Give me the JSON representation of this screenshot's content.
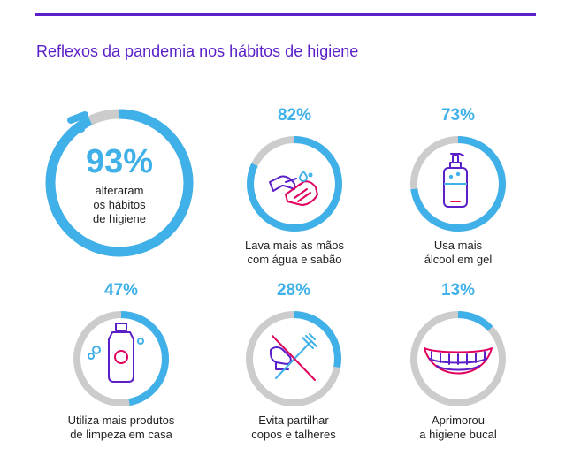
{
  "title": "Reflexos da pandemia nos hábitos de higiene",
  "colors": {
    "accent": "#5a1fc9",
    "blue": "#3fb0e8",
    "gray": "#cccccc",
    "pink": "#e0005e"
  },
  "main_stat": {
    "percent": "93%",
    "value": 0.93,
    "caption_lines": [
      "alteraram",
      "os hábitos",
      "de higiene"
    ],
    "icon": "arrow-ring"
  },
  "stats": [
    {
      "percent": "82%",
      "value": 0.82,
      "caption_lines": [
        "Lava mais as mãos",
        "com água e sabão"
      ],
      "icon": "handwash-icon"
    },
    {
      "percent": "73%",
      "value": 0.73,
      "caption_lines": [
        "Usa mais",
        "álcool em gel"
      ],
      "icon": "sanitizer-bottle-icon"
    },
    {
      "percent": "47%",
      "value": 0.47,
      "caption_lines": [
        "Utiliza mais produtos",
        "de limpeza em casa"
      ],
      "icon": "cleaning-bottle-icon"
    },
    {
      "percent": "28%",
      "value": 0.28,
      "caption_lines": [
        "Evita partilhar",
        "copos e talheres"
      ],
      "icon": "no-cutlery-icon"
    },
    {
      "percent": "13%",
      "value": 0.13,
      "caption_lines": [
        "Aprimorou",
        "a higiene bucal"
      ],
      "icon": "smile-teeth-icon"
    }
  ]
}
